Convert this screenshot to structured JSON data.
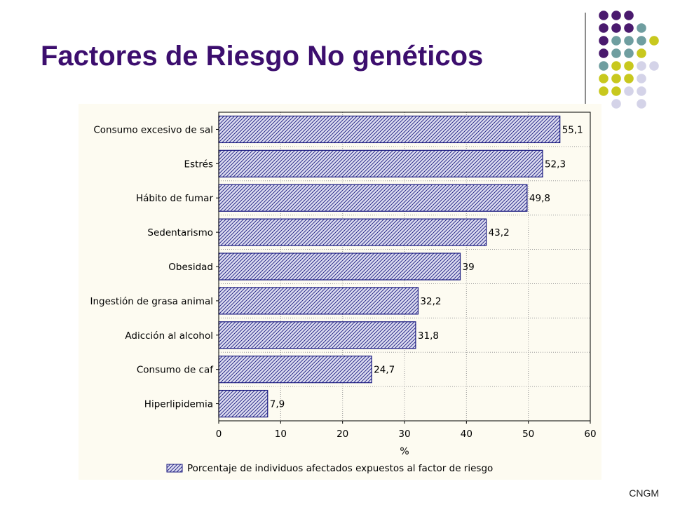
{
  "slide": {
    "title": "Factores de Riesgo No genéticos",
    "footer": "CNGM"
  },
  "decoration": {
    "dot_colors": {
      "purple": "#4a1a6e",
      "teal": "#6f9ea0",
      "yellow": "#c8c81e",
      "lavender": "#d4d3e8"
    }
  },
  "chart_data": {
    "type": "bar",
    "orientation": "horizontal",
    "categories": [
      "Consumo excesivo de sal",
      "Estrés",
      "Hábito de fumar",
      "Sedentarismo",
      "Obesidad",
      "Ingestión de grasa animal",
      "Adicción al alcohol",
      "Consumo de caf",
      "Hiperlipidemia"
    ],
    "values": [
      55.1,
      52.3,
      49.8,
      43.2,
      39,
      32.2,
      31.8,
      24.7,
      7.9
    ],
    "value_labels": [
      "55,1",
      "52,3",
      "49,8",
      "43,2",
      "39",
      "32,2",
      "31,8",
      "24,7",
      "7,9"
    ],
    "xlabel": "%",
    "xlim": [
      0,
      60
    ],
    "xticks": [
      0,
      10,
      20,
      30,
      40,
      50,
      60
    ],
    "grid": true,
    "legend_entry": "Porcentaje de individuos afectados expuestos al factor de riesgo",
    "legend_position": "bottom",
    "bar_pattern": "diagonal-hatch",
    "bar_color": "#1a1a80",
    "bar_fill": "#dcdcf0"
  }
}
